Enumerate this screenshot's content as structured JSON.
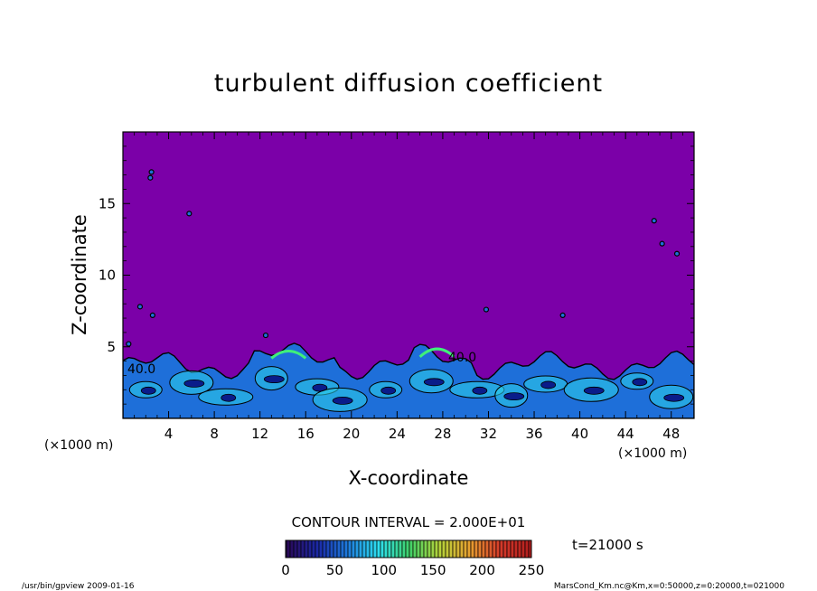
{
  "chart_data": {
    "type": "heatmap",
    "title": "turbulent diffusion coefficient",
    "xlabel": "X-coordinate",
    "ylabel": "Z-coordinate",
    "x_unit": "(×1000 m)",
    "z_unit": "(×1000 m)",
    "xlim": [
      0,
      50
    ],
    "ylim": [
      0,
      20
    ],
    "x_ticks": [
      4,
      8,
      12,
      16,
      20,
      24,
      28,
      32,
      36,
      40,
      44,
      48
    ],
    "y_ticks": [
      5,
      10,
      15
    ],
    "contour_interval": "CONTOUR INTERVAL = 2.000E+01",
    "contour_labels": [
      "40.0",
      "40.0"
    ],
    "time_label": "t=21000 s",
    "colorbar": {
      "range": [
        0,
        250
      ],
      "ticks": [
        0,
        50,
        100,
        150,
        200,
        250
      ],
      "colors": [
        "#2a0a5a",
        "#1b2aa8",
        "#1f7fe0",
        "#2ee0f0",
        "#3fd16a",
        "#b5d43a",
        "#e8a030",
        "#d53a2a",
        "#b31e1e"
      ]
    },
    "background_color": "#7b00a8",
    "layer_color": "#1e6fd9",
    "boundary_layer_top_km": 4.5
  },
  "footer": {
    "left": "/usr/bin/gpview   2009-01-16",
    "right": "MarsCond_Km.nc@Km,x=0:50000,z=0:20000,t=021000"
  }
}
